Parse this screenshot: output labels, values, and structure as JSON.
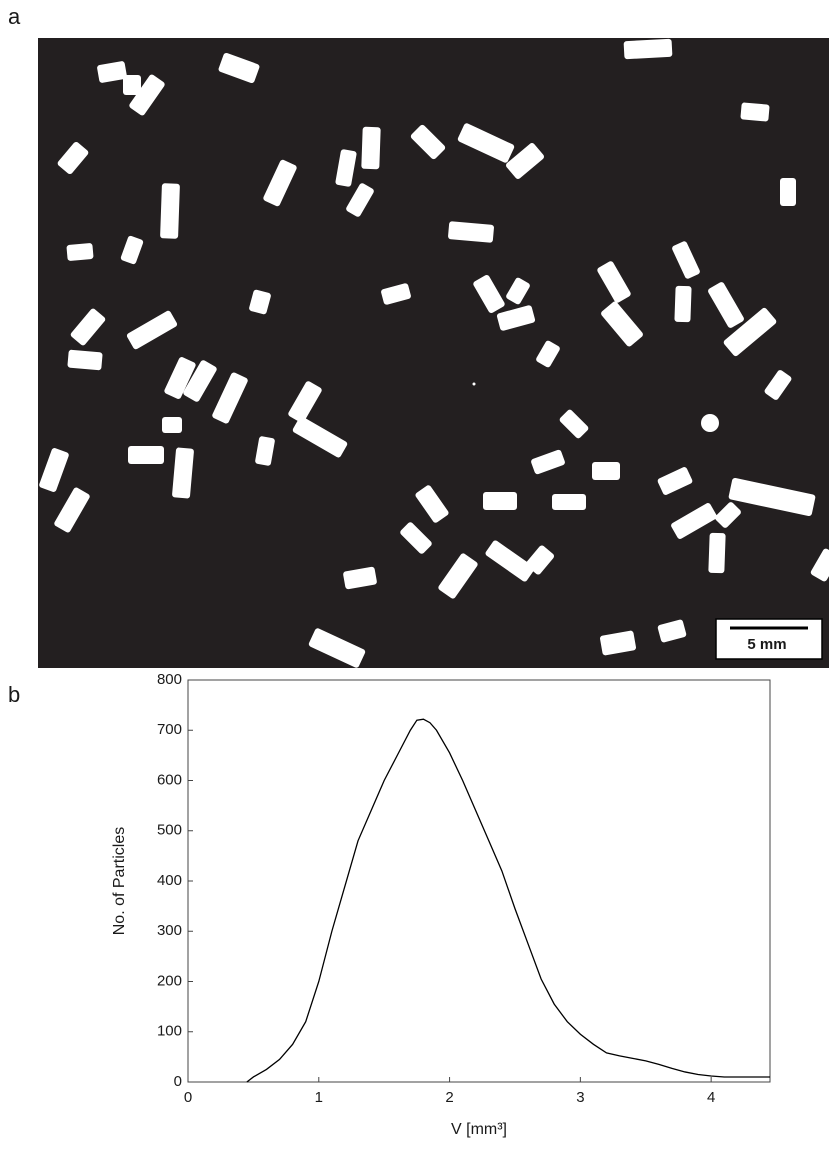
{
  "panel_a": {
    "label": "a",
    "scale_bar": "5 mm"
  },
  "panel_b": {
    "label": "b"
  },
  "chart_data": {
    "type": "line",
    "x_label": "V [mm³]",
    "y_label": "No. of Particles",
    "x": [
      0.45,
      0.5,
      0.6,
      0.7,
      0.8,
      0.9,
      1.0,
      1.1,
      1.2,
      1.3,
      1.4,
      1.5,
      1.6,
      1.7,
      1.75,
      1.8,
      1.85,
      1.9,
      2.0,
      2.1,
      2.2,
      2.3,
      2.4,
      2.5,
      2.6,
      2.7,
      2.8,
      2.9,
      3.0,
      3.1,
      3.2,
      3.3,
      3.4,
      3.5,
      3.6,
      3.7,
      3.8,
      3.9,
      4.0,
      4.1,
      4.2,
      4.3,
      4.45
    ],
    "values": [
      0,
      10,
      25,
      45,
      75,
      120,
      200,
      300,
      390,
      480,
      540,
      600,
      650,
      700,
      720,
      722,
      715,
      700,
      655,
      600,
      540,
      480,
      420,
      345,
      275,
      205,
      155,
      120,
      95,
      75,
      58,
      52,
      47,
      42,
      35,
      27,
      20,
      15,
      12,
      10,
      10,
      10,
      10
    ],
    "color": "#000000",
    "xlim": [
      0,
      4.45
    ],
    "ylim": [
      0,
      800
    ],
    "xticks": [
      0,
      1,
      2,
      3,
      4
    ],
    "yticks": [
      0,
      100,
      200,
      300,
      400,
      500,
      600,
      700,
      800
    ],
    "grid": false
  }
}
